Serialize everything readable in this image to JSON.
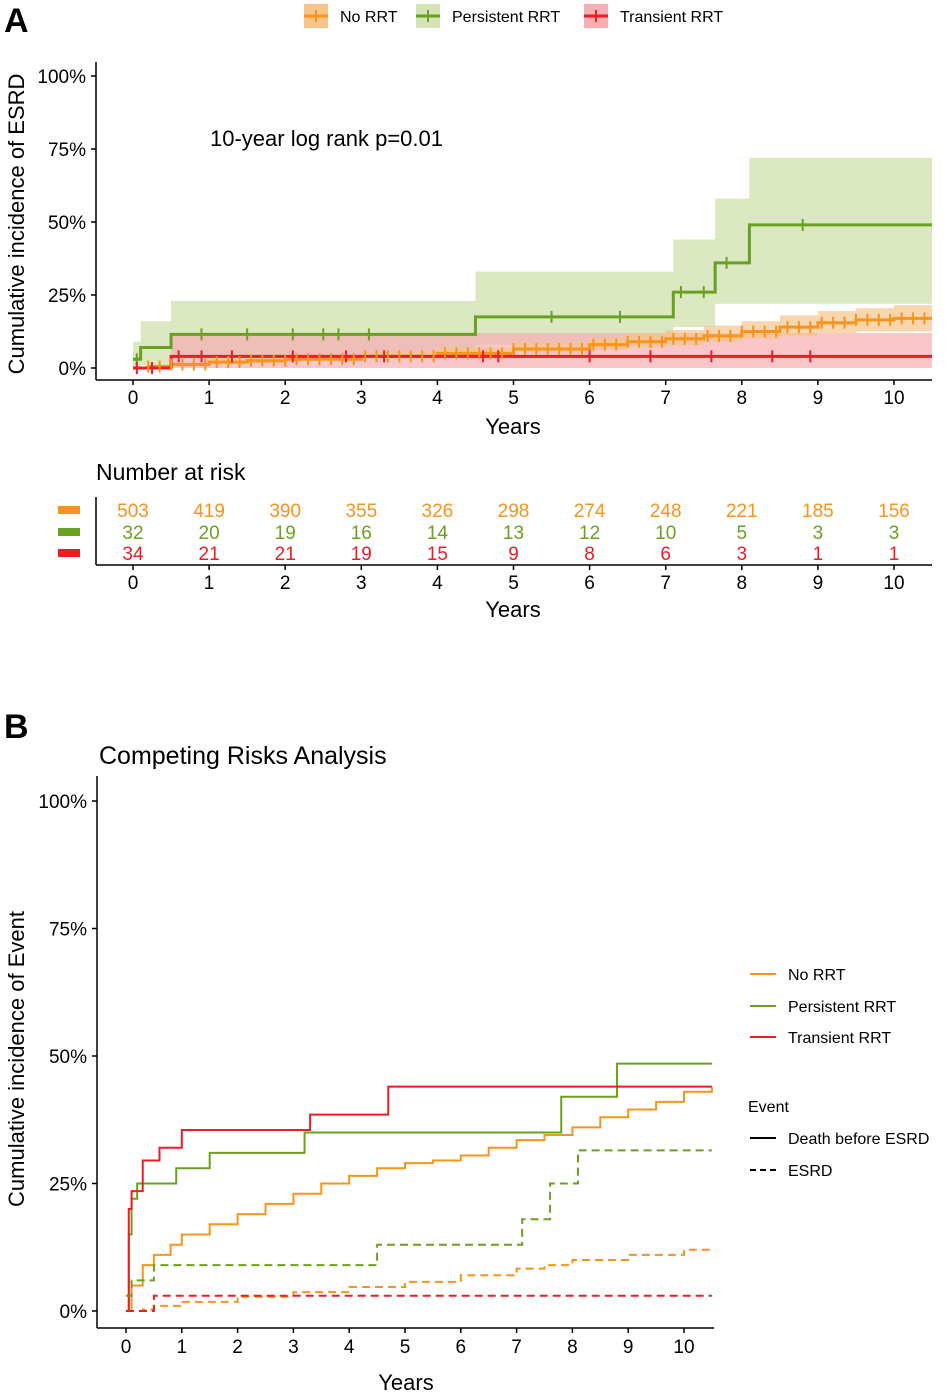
{
  "colors": {
    "no_rrt": "#F7941D",
    "persistent": "#6AA121",
    "transient": "#EE1C25",
    "no_rrt_band": "#F7C48A",
    "persistent_band": "#D5E4B6",
    "transient_band": "#F6AEB3"
  },
  "panelA": {
    "letter": "A",
    "legend": [
      "No RRT",
      "Persistent RRT",
      "Transient RRT"
    ],
    "annotation": "10-year log rank p=0.01",
    "ylabel": "Cumulative incidence of ESRD",
    "xlabel": "Years",
    "yticks": [
      "0%",
      "25%",
      "50%",
      "75%",
      "100%"
    ],
    "xticks": [
      "0",
      "1",
      "2",
      "3",
      "4",
      "5",
      "6",
      "7",
      "8",
      "9",
      "10"
    ],
    "risk_title": "Number at risk",
    "risk_xlabel": "Years"
  },
  "panelB": {
    "letter": "B",
    "title": "Competing Risks Analysis",
    "ylabel": "Cumulative incidence of Event",
    "xlabel": "Years",
    "yticks": [
      "0%",
      "25%",
      "50%",
      "75%",
      "100%"
    ],
    "xticks": [
      "0",
      "1",
      "2",
      "3",
      "4",
      "5",
      "6",
      "7",
      "8",
      "9",
      "10"
    ],
    "legend_groups": [
      "No RRT",
      "Persistent RRT",
      "Transient RRT"
    ],
    "legend_event_title": "Event",
    "legend_events": [
      "Death before ESRD",
      "ESRD"
    ]
  },
  "chart_data": [
    {
      "type": "line",
      "subtype": "cumulative incidence step",
      "xlim": [
        0,
        10.5
      ],
      "ylim": [
        0,
        1
      ],
      "series": [
        {
          "name": "No RRT",
          "color": "#F7941D",
          "x": [
            0,
            0.2,
            0.5,
            1,
            1.5,
            2,
            3,
            4,
            5,
            6,
            6.5,
            7,
            7.5,
            8,
            8.5,
            9,
            9.5,
            10,
            10.5
          ],
          "y": [
            0,
            0.005,
            0.012,
            0.02,
            0.025,
            0.03,
            0.04,
            0.05,
            0.065,
            0.08,
            0.09,
            0.1,
            0.11,
            0.125,
            0.14,
            0.155,
            0.165,
            0.17,
            0.17
          ],
          "band_lo": [
            0,
            0,
            0.003,
            0.01,
            0.013,
            0.018,
            0.025,
            0.033,
            0.045,
            0.055,
            0.063,
            0.07,
            0.078,
            0.09,
            0.1,
            0.11,
            0.12,
            0.125,
            0.125
          ],
          "band_hi": [
            0,
            0.01,
            0.022,
            0.032,
            0.038,
            0.045,
            0.058,
            0.07,
            0.088,
            0.105,
            0.117,
            0.13,
            0.145,
            0.16,
            0.18,
            0.195,
            0.205,
            0.215,
            0.215
          ]
        },
        {
          "name": "Persistent RRT",
          "color": "#6AA121",
          "x": [
            0,
            0.1,
            0.5,
            4.5,
            7.1,
            7.65,
            8.1,
            10.5
          ],
          "y": [
            0.03,
            0.07,
            0.115,
            0.175,
            0.26,
            0.36,
            0.49,
            0.49
          ],
          "band_lo": [
            0,
            0,
            0.01,
            0.04,
            0.08,
            0.14,
            0.22,
            0.22
          ],
          "band_hi": [
            0.09,
            0.16,
            0.23,
            0.33,
            0.44,
            0.58,
            0.72,
            0.72
          ]
        },
        {
          "name": "Transient RRT",
          "color": "#EE1C25",
          "x": [
            0,
            0.5,
            10.5
          ],
          "y": [
            0,
            0.04,
            0.04
          ],
          "band_lo": [
            0,
            0,
            0
          ],
          "band_hi": [
            0,
            0.12,
            0.12
          ]
        }
      ],
      "risk_table": {
        "times": [
          0,
          1,
          2,
          3,
          4,
          5,
          6,
          7,
          8,
          9,
          10
        ],
        "No RRT": [
          503,
          419,
          390,
          355,
          326,
          298,
          274,
          248,
          221,
          185,
          156
        ],
        "Persistent RRT": [
          32,
          20,
          19,
          16,
          14,
          13,
          12,
          10,
          5,
          3,
          3
        ],
        "Transient RRT": [
          34,
          21,
          21,
          19,
          15,
          9,
          8,
          6,
          3,
          1,
          1
        ]
      }
    },
    {
      "type": "line",
      "subtype": "competing risks cumulative incidence",
      "xlim": [
        0,
        10.5
      ],
      "ylim": [
        0,
        1
      ],
      "series": [
        {
          "name": "No RRT",
          "event": "Death before ESRD",
          "color": "#F7941D",
          "dash": false,
          "x": [
            0,
            0.1,
            0.3,
            0.5,
            0.8,
            1,
            1.5,
            2,
            2.5,
            3,
            3.5,
            4,
            4.5,
            5,
            5.5,
            6,
            6.5,
            7,
            7.5,
            8,
            8.5,
            9,
            9.5,
            10,
            10.5
          ],
          "y": [
            0,
            0.05,
            0.09,
            0.11,
            0.13,
            0.15,
            0.17,
            0.19,
            0.21,
            0.23,
            0.25,
            0.265,
            0.28,
            0.29,
            0.295,
            0.305,
            0.32,
            0.335,
            0.345,
            0.36,
            0.38,
            0.395,
            0.41,
            0.43,
            0.44
          ]
        },
        {
          "name": "Persistent RRT",
          "event": "Death before ESRD",
          "color": "#6AA121",
          "dash": false,
          "x": [
            0,
            0.05,
            0.1,
            0.2,
            0.4,
            0.9,
            1.5,
            3.2,
            7.8,
            8.8,
            10.5
          ],
          "y": [
            0,
            0.15,
            0.22,
            0.25,
            0.25,
            0.28,
            0.31,
            0.35,
            0.42,
            0.485,
            0.485
          ]
        },
        {
          "name": "Transient RRT",
          "event": "Death before ESRD",
          "color": "#EE1C25",
          "dash": false,
          "x": [
            0,
            0.05,
            0.1,
            0.3,
            0.6,
            1,
            3.3,
            4.7,
            10.5
          ],
          "y": [
            0,
            0.2,
            0.235,
            0.295,
            0.32,
            0.355,
            0.385,
            0.44,
            0.44
          ]
        },
        {
          "name": "No RRT",
          "event": "ESRD",
          "color": "#F7941D",
          "dash": true,
          "x": [
            0,
            0.3,
            0.5,
            1,
            2,
            3,
            4,
            5,
            6,
            7,
            7.5,
            8,
            9,
            10,
            10.5
          ],
          "y": [
            0,
            0.003,
            0.01,
            0.018,
            0.028,
            0.037,
            0.047,
            0.057,
            0.07,
            0.083,
            0.09,
            0.1,
            0.11,
            0.12,
            0.12
          ]
        },
        {
          "name": "Persistent RRT",
          "event": "ESRD",
          "color": "#6AA121",
          "dash": true,
          "x": [
            0,
            0.1,
            0.5,
            4.5,
            7.1,
            7.6,
            8.1,
            10.5
          ],
          "y": [
            0.03,
            0.06,
            0.09,
            0.13,
            0.18,
            0.25,
            0.315,
            0.315
          ]
        },
        {
          "name": "Transient RRT",
          "event": "ESRD",
          "color": "#EE1C25",
          "dash": true,
          "x": [
            0,
            0.5,
            10.5
          ],
          "y": [
            0,
            0.03,
            0.03
          ]
        }
      ]
    }
  ]
}
